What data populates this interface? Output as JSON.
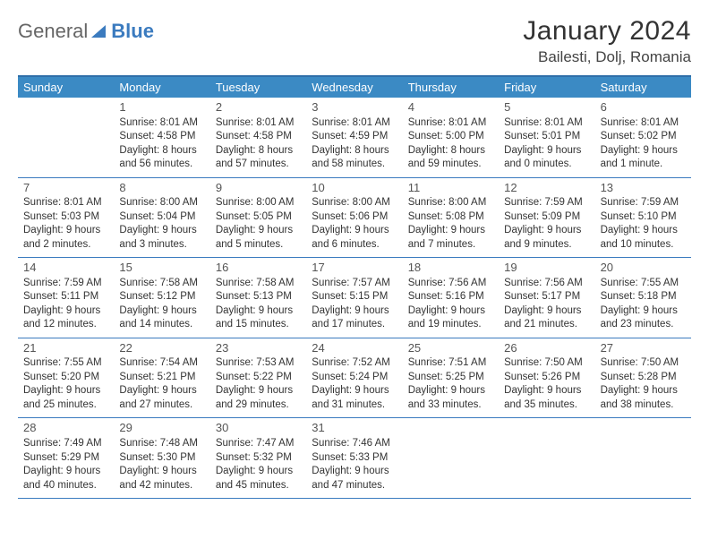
{
  "logo": {
    "general": "General",
    "blue": "Blue"
  },
  "title": {
    "month": "January 2024",
    "location": "Bailesti, Dolj, Romania"
  },
  "day_labels": [
    "Sunday",
    "Monday",
    "Tuesday",
    "Wednesday",
    "Thursday",
    "Friday",
    "Saturday"
  ],
  "colors": {
    "header_bg": "#3b8ac4",
    "border": "#3b7bbf",
    "top_border": "#2f6ea8"
  },
  "weeks": [
    [
      {
        "date": "",
        "sunrise": "",
        "sunset": "",
        "daylight1": "",
        "daylight2": ""
      },
      {
        "date": "1",
        "sunrise": "Sunrise: 8:01 AM",
        "sunset": "Sunset: 4:58 PM",
        "daylight1": "Daylight: 8 hours",
        "daylight2": "and 56 minutes."
      },
      {
        "date": "2",
        "sunrise": "Sunrise: 8:01 AM",
        "sunset": "Sunset: 4:58 PM",
        "daylight1": "Daylight: 8 hours",
        "daylight2": "and 57 minutes."
      },
      {
        "date": "3",
        "sunrise": "Sunrise: 8:01 AM",
        "sunset": "Sunset: 4:59 PM",
        "daylight1": "Daylight: 8 hours",
        "daylight2": "and 58 minutes."
      },
      {
        "date": "4",
        "sunrise": "Sunrise: 8:01 AM",
        "sunset": "Sunset: 5:00 PM",
        "daylight1": "Daylight: 8 hours",
        "daylight2": "and 59 minutes."
      },
      {
        "date": "5",
        "sunrise": "Sunrise: 8:01 AM",
        "sunset": "Sunset: 5:01 PM",
        "daylight1": "Daylight: 9 hours",
        "daylight2": "and 0 minutes."
      },
      {
        "date": "6",
        "sunrise": "Sunrise: 8:01 AM",
        "sunset": "Sunset: 5:02 PM",
        "daylight1": "Daylight: 9 hours",
        "daylight2": "and 1 minute."
      }
    ],
    [
      {
        "date": "7",
        "sunrise": "Sunrise: 8:01 AM",
        "sunset": "Sunset: 5:03 PM",
        "daylight1": "Daylight: 9 hours",
        "daylight2": "and 2 minutes."
      },
      {
        "date": "8",
        "sunrise": "Sunrise: 8:00 AM",
        "sunset": "Sunset: 5:04 PM",
        "daylight1": "Daylight: 9 hours",
        "daylight2": "and 3 minutes."
      },
      {
        "date": "9",
        "sunrise": "Sunrise: 8:00 AM",
        "sunset": "Sunset: 5:05 PM",
        "daylight1": "Daylight: 9 hours",
        "daylight2": "and 5 minutes."
      },
      {
        "date": "10",
        "sunrise": "Sunrise: 8:00 AM",
        "sunset": "Sunset: 5:06 PM",
        "daylight1": "Daylight: 9 hours",
        "daylight2": "and 6 minutes."
      },
      {
        "date": "11",
        "sunrise": "Sunrise: 8:00 AM",
        "sunset": "Sunset: 5:08 PM",
        "daylight1": "Daylight: 9 hours",
        "daylight2": "and 7 minutes."
      },
      {
        "date": "12",
        "sunrise": "Sunrise: 7:59 AM",
        "sunset": "Sunset: 5:09 PM",
        "daylight1": "Daylight: 9 hours",
        "daylight2": "and 9 minutes."
      },
      {
        "date": "13",
        "sunrise": "Sunrise: 7:59 AM",
        "sunset": "Sunset: 5:10 PM",
        "daylight1": "Daylight: 9 hours",
        "daylight2": "and 10 minutes."
      }
    ],
    [
      {
        "date": "14",
        "sunrise": "Sunrise: 7:59 AM",
        "sunset": "Sunset: 5:11 PM",
        "daylight1": "Daylight: 9 hours",
        "daylight2": "and 12 minutes."
      },
      {
        "date": "15",
        "sunrise": "Sunrise: 7:58 AM",
        "sunset": "Sunset: 5:12 PM",
        "daylight1": "Daylight: 9 hours",
        "daylight2": "and 14 minutes."
      },
      {
        "date": "16",
        "sunrise": "Sunrise: 7:58 AM",
        "sunset": "Sunset: 5:13 PM",
        "daylight1": "Daylight: 9 hours",
        "daylight2": "and 15 minutes."
      },
      {
        "date": "17",
        "sunrise": "Sunrise: 7:57 AM",
        "sunset": "Sunset: 5:15 PM",
        "daylight1": "Daylight: 9 hours",
        "daylight2": "and 17 minutes."
      },
      {
        "date": "18",
        "sunrise": "Sunrise: 7:56 AM",
        "sunset": "Sunset: 5:16 PM",
        "daylight1": "Daylight: 9 hours",
        "daylight2": "and 19 minutes."
      },
      {
        "date": "19",
        "sunrise": "Sunrise: 7:56 AM",
        "sunset": "Sunset: 5:17 PM",
        "daylight1": "Daylight: 9 hours",
        "daylight2": "and 21 minutes."
      },
      {
        "date": "20",
        "sunrise": "Sunrise: 7:55 AM",
        "sunset": "Sunset: 5:18 PM",
        "daylight1": "Daylight: 9 hours",
        "daylight2": "and 23 minutes."
      }
    ],
    [
      {
        "date": "21",
        "sunrise": "Sunrise: 7:55 AM",
        "sunset": "Sunset: 5:20 PM",
        "daylight1": "Daylight: 9 hours",
        "daylight2": "and 25 minutes."
      },
      {
        "date": "22",
        "sunrise": "Sunrise: 7:54 AM",
        "sunset": "Sunset: 5:21 PM",
        "daylight1": "Daylight: 9 hours",
        "daylight2": "and 27 minutes."
      },
      {
        "date": "23",
        "sunrise": "Sunrise: 7:53 AM",
        "sunset": "Sunset: 5:22 PM",
        "daylight1": "Daylight: 9 hours",
        "daylight2": "and 29 minutes."
      },
      {
        "date": "24",
        "sunrise": "Sunrise: 7:52 AM",
        "sunset": "Sunset: 5:24 PM",
        "daylight1": "Daylight: 9 hours",
        "daylight2": "and 31 minutes."
      },
      {
        "date": "25",
        "sunrise": "Sunrise: 7:51 AM",
        "sunset": "Sunset: 5:25 PM",
        "daylight1": "Daylight: 9 hours",
        "daylight2": "and 33 minutes."
      },
      {
        "date": "26",
        "sunrise": "Sunrise: 7:50 AM",
        "sunset": "Sunset: 5:26 PM",
        "daylight1": "Daylight: 9 hours",
        "daylight2": "and 35 minutes."
      },
      {
        "date": "27",
        "sunrise": "Sunrise: 7:50 AM",
        "sunset": "Sunset: 5:28 PM",
        "daylight1": "Daylight: 9 hours",
        "daylight2": "and 38 minutes."
      }
    ],
    [
      {
        "date": "28",
        "sunrise": "Sunrise: 7:49 AM",
        "sunset": "Sunset: 5:29 PM",
        "daylight1": "Daylight: 9 hours",
        "daylight2": "and 40 minutes."
      },
      {
        "date": "29",
        "sunrise": "Sunrise: 7:48 AM",
        "sunset": "Sunset: 5:30 PM",
        "daylight1": "Daylight: 9 hours",
        "daylight2": "and 42 minutes."
      },
      {
        "date": "30",
        "sunrise": "Sunrise: 7:47 AM",
        "sunset": "Sunset: 5:32 PM",
        "daylight1": "Daylight: 9 hours",
        "daylight2": "and 45 minutes."
      },
      {
        "date": "31",
        "sunrise": "Sunrise: 7:46 AM",
        "sunset": "Sunset: 5:33 PM",
        "daylight1": "Daylight: 9 hours",
        "daylight2": "and 47 minutes."
      },
      {
        "date": "",
        "sunrise": "",
        "sunset": "",
        "daylight1": "",
        "daylight2": ""
      },
      {
        "date": "",
        "sunrise": "",
        "sunset": "",
        "daylight1": "",
        "daylight2": ""
      },
      {
        "date": "",
        "sunrise": "",
        "sunset": "",
        "daylight1": "",
        "daylight2": ""
      }
    ]
  ]
}
